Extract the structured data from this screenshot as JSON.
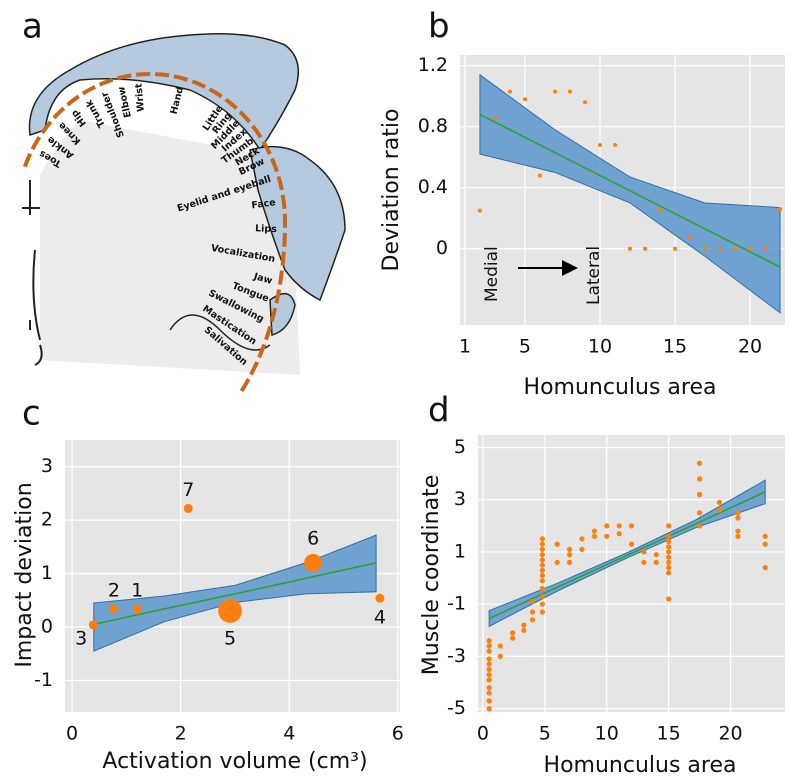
{
  "figure_a": {
    "panel": "a",
    "labels": [
      "Toes",
      "Ankle",
      "Knee",
      "Hip",
      "Trunk",
      "Shoulder",
      "Elbow",
      "Wrist",
      "Hand",
      "Little",
      "Ring",
      "Middle",
      "Index",
      "Thumb",
      "Neck",
      "Brow",
      "Eyelid and eyeball",
      "Face",
      "Lips",
      "Vocalization",
      "Jaw",
      "Tongue",
      "Swallowing",
      "Mastication",
      "Salivation"
    ]
  },
  "chart_data": [
    {
      "type": "scatter",
      "panel": "b",
      "xlabel": "Homunculus area",
      "ylabel": "Deviation ratio",
      "xlim": [
        0.67,
        22.33
      ],
      "ylim": [
        -0.5,
        1.27
      ],
      "xticks": [
        1,
        5,
        10,
        15,
        20
      ],
      "yticks": [
        0,
        0.4,
        0.8,
        1.2
      ],
      "grid": true,
      "annotations": [
        "Medial",
        "Lateral"
      ],
      "points": {
        "color": "#ff7f0e",
        "x": [
          2,
          3,
          4,
          5,
          6,
          7,
          8,
          9,
          10,
          11,
          12,
          13,
          14,
          15,
          16,
          17,
          18,
          19,
          20,
          21,
          22
        ],
        "y": [
          0.25,
          0.86,
          1.03,
          0.98,
          0.48,
          1.03,
          1.03,
          0.96,
          0.68,
          0.68,
          0,
          0,
          0.26,
          0,
          0.07,
          0,
          0,
          0,
          0,
          0,
          0.26
        ]
      },
      "fit": {
        "color": "#2ca02c",
        "band_color": "#5b97cc",
        "x": [
          2,
          7,
          12,
          17,
          22
        ],
        "y": [
          0.88,
          0.63,
          0.38,
          0.13,
          -0.12
        ],
        "upper": [
          1.14,
          0.78,
          0.47,
          0.3,
          0.27
        ],
        "lower": [
          0.62,
          0.5,
          0.3,
          -0.05,
          -0.42
        ]
      }
    },
    {
      "type": "scatter",
      "panel": "c",
      "xlabel": "Activation volume (cm³)",
      "ylabel": "Impact deviation",
      "xlim": [
        -0.13,
        6.04
      ],
      "ylim": [
        -1.59,
        3.5
      ],
      "xticks": [
        0,
        2,
        4,
        6
      ],
      "yticks": [
        -1,
        0,
        1,
        2,
        3
      ],
      "grid": true,
      "points": {
        "color": "#ff7f0e",
        "x": [
          1.2,
          0.77,
          0.39,
          5.67,
          2.91,
          4.44,
          2.14
        ],
        "y": [
          0.34,
          0.34,
          0.04,
          0.54,
          0.3,
          1.2,
          2.22
        ],
        "sizes": [
          1,
          1,
          1,
          1,
          7,
          4,
          1
        ],
        "point_labels": [
          "1",
          "2",
          "3",
          "4",
          "5",
          "6",
          "7"
        ]
      },
      "fit": {
        "color": "#2ca02c",
        "band_color": "#5b97cc",
        "x": [
          0.4,
          1.7,
          3.0,
          4.3,
          5.6
        ],
        "y": [
          0.05,
          0.34,
          0.62,
          0.91,
          1.2
        ],
        "upper": [
          0.45,
          0.58,
          0.78,
          1.2,
          1.72
        ],
        "lower": [
          -0.45,
          0.1,
          0.46,
          0.62,
          0.66
        ]
      }
    },
    {
      "type": "scatter",
      "panel": "d",
      "xlabel": "Homunculus area",
      "ylabel": "Muscle coordinate",
      "xlim": [
        -0.4,
        24.4
      ],
      "ylim": [
        -5.13,
        5.48
      ],
      "xticks": [
        0,
        5,
        10,
        15,
        20
      ],
      "yticks": [
        -5,
        -3,
        -1,
        1,
        3,
        5
      ],
      "grid": true,
      "points": {
        "color": "#ff7f0e",
        "x": [
          0.5,
          0.5,
          0.5,
          0.5,
          0.5,
          0.5,
          0.5,
          0.5,
          0.5,
          0.5,
          0.5,
          0.5,
          1.4,
          1.4,
          2.4,
          2.4,
          3.3,
          3.3,
          4,
          4,
          4,
          4.8,
          4.8,
          4.8,
          4.8,
          4.8,
          4.8,
          4.8,
          4.8,
          4.8,
          4.8,
          4.8,
          4.8,
          4.8,
          6,
          6,
          7,
          7,
          7,
          8,
          8,
          9,
          9,
          10,
          10,
          11,
          11,
          12,
          12,
          13,
          13,
          14,
          14,
          15,
          15,
          15,
          15,
          15,
          15,
          15,
          15,
          15,
          15,
          17.5,
          17.5,
          17.5,
          17.5,
          17.5,
          19.1,
          19.1,
          20.6,
          20.6,
          20.6,
          20.6,
          22.8,
          22.8,
          22.8
        ],
        "y": [
          -5,
          -4.7,
          -4.4,
          -4.2,
          -3.9,
          -3.7,
          -3.5,
          -3.3,
          -3.1,
          -2.8,
          -2.6,
          -2.4,
          -2.6,
          -3.0,
          -2.1,
          -2.3,
          -1.8,
          -2.0,
          -1.3,
          -1.6,
          -0.9,
          -1.3,
          -1.0,
          -0.7,
          -0.4,
          -0.1,
          0.1,
          0.3,
          0.5,
          0.7,
          0.9,
          1.1,
          1.3,
          1.5,
          0.6,
          1.3,
          0.6,
          0.9,
          1.1,
          1.1,
          1.5,
          1.6,
          1.8,
          2.0,
          1.6,
          2.0,
          1.7,
          2.0,
          1.3,
          0.6,
          1.0,
          0.6,
          0.9,
          -0.8,
          0.2,
          0.4,
          0.6,
          0.8,
          1.0,
          1.2,
          1.4,
          1.6,
          2.0,
          2.0,
          2.5,
          3.2,
          3.8,
          4.4,
          2.9,
          2.6,
          2.5,
          2.3,
          1.8,
          1.6,
          1.6,
          1.3,
          0.4
        ]
      },
      "fit": {
        "color": "#2ca02c",
        "band_color": "#5b97cc",
        "x": [
          0.5,
          6,
          11.6,
          17.2,
          22.8
        ],
        "y": [
          -1.55,
          -0.35,
          0.86,
          2.08,
          3.3
        ],
        "upper": [
          -1.25,
          -0.2,
          0.96,
          2.23,
          3.75
        ],
        "lower": [
          -1.85,
          -0.5,
          0.76,
          1.93,
          2.85
        ]
      }
    }
  ]
}
